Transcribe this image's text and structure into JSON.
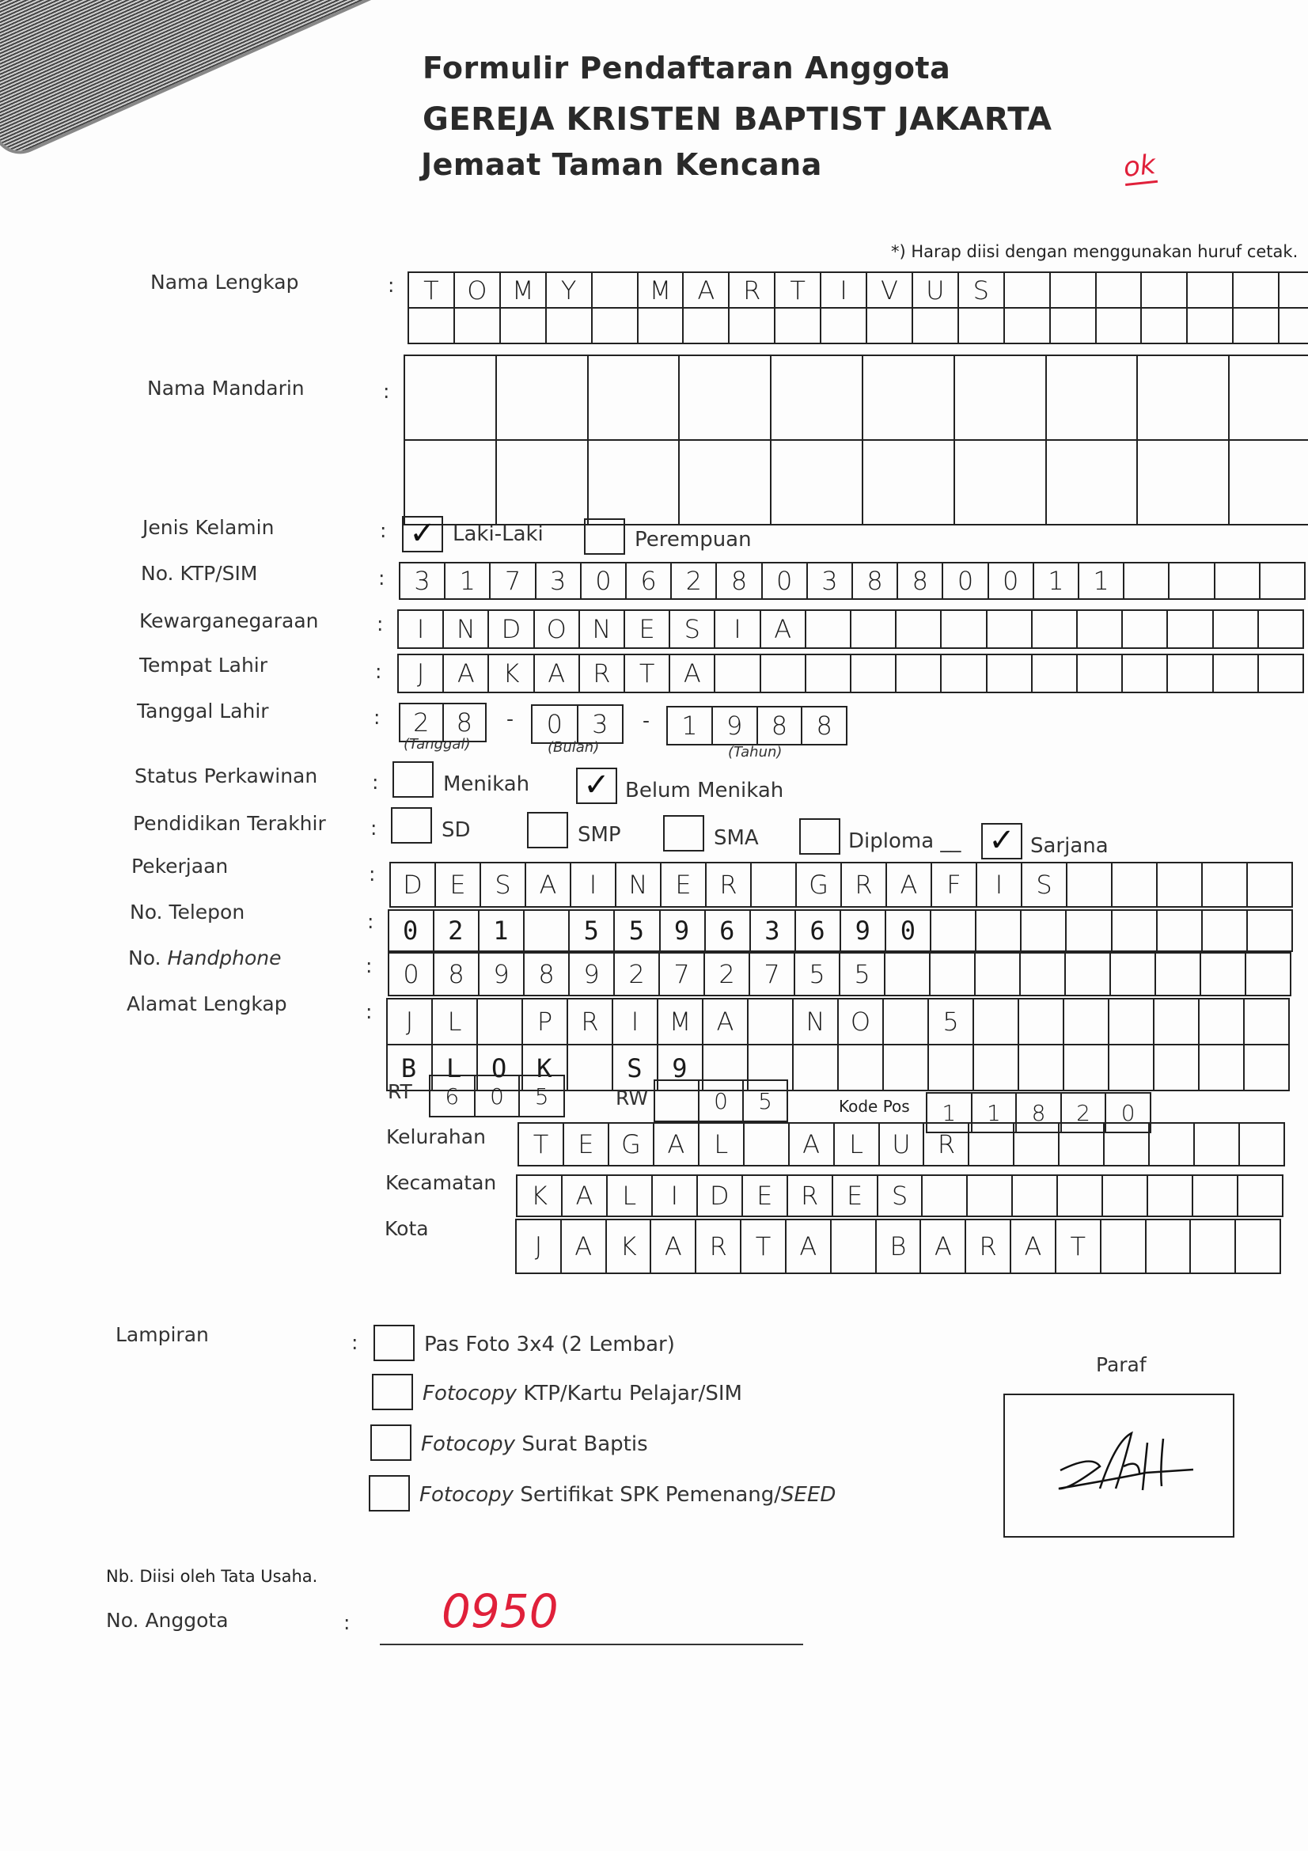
{
  "header": {
    "title": "Formulir Pendaftaran Anggota",
    "org": "GEREJA KRISTEN BAPTIST JAKARTA",
    "congregation": "Jemaat Taman Kencana",
    "ok_mark": "ok",
    "note": "*) Harap diisi dengan menggunakan huruf cetak."
  },
  "fields": {
    "nama_lengkap": {
      "label": "Nama Lengkap",
      "row1": "TOMY MARTIVUS",
      "row2": ""
    },
    "nama_mandarin": {
      "label": "Nama Mandarin",
      "row1": "",
      "row2": ""
    },
    "jenis_kelamin": {
      "label": "Jenis Kelamin",
      "options": [
        {
          "label": "Laki-Laki",
          "checked": true
        },
        {
          "label": "Perempuan",
          "checked": false
        }
      ]
    },
    "ktp": {
      "label": "No. KTP/SIM",
      "value": "3173062803880011"
    },
    "kewarganegaraan": {
      "label": "Kewarganegaraan",
      "value": "INDONESIA"
    },
    "tempat_lahir": {
      "label": "Tempat Lahir",
      "value": "JAKARTA"
    },
    "tanggal_lahir": {
      "label": "Tanggal Lahir",
      "day": "28",
      "month": "03",
      "year": "1988",
      "day_caption": "(Tanggal)",
      "month_caption": "(Bulan)",
      "year_caption": "(Tahun)",
      "sep": "-"
    },
    "status": {
      "label": "Status Perkawinan",
      "options": [
        {
          "label": "Menikah",
          "checked": false
        },
        {
          "label": "Belum Menikah",
          "checked": true
        }
      ]
    },
    "pendidikan": {
      "label": "Pendidikan Terakhir",
      "options": [
        {
          "label": "SD",
          "checked": false
        },
        {
          "label": "SMP",
          "checked": false
        },
        {
          "label": "SMA",
          "checked": false
        },
        {
          "label": "Diploma __",
          "checked": false
        },
        {
          "label": "Sarjana",
          "checked": true
        }
      ]
    },
    "pekerjaan": {
      "label": "Pekerjaan",
      "value": "DESAINER GRAFIS"
    },
    "telepon": {
      "label": "No. Telepon",
      "value": "021 55963690"
    },
    "handphone": {
      "label_prefix": "No. ",
      "label_italic": "Handphone",
      "value": "08989272755"
    },
    "alamat": {
      "label": "Alamat Lengkap",
      "row1": "JL PRIMA NO 5",
      "row2": "BLOK S9"
    },
    "rt": {
      "label": "RT",
      "value": "605"
    },
    "rw": {
      "label": "RW",
      "value": " 05"
    },
    "kode_pos": {
      "label": "Kode Pos",
      "value": "11820"
    },
    "kelurahan": {
      "label": "Kelurahan",
      "value": "TEGAL ALUR"
    },
    "kecamatan": {
      "label": "Kecamatan",
      "value": "KALIDERES"
    },
    "kota": {
      "label": "Kota",
      "value": "JAKARTA BARAT"
    }
  },
  "lampiran": {
    "label": "Lampiran",
    "items": [
      {
        "italic": "",
        "text": "Pas Foto 3x4 (2 Lembar)",
        "checked": false
      },
      {
        "italic": "Fotocopy",
        "text": " KTP/Kartu Pelajar/SIM",
        "checked": false
      },
      {
        "italic": "Fotocopy",
        "text": " Surat Baptis",
        "checked": false
      },
      {
        "italic": "Fotocopy",
        "text": " Sertifikat SPK Pemenang/",
        "text_italic_end": "SEED",
        "checked": false
      }
    ]
  },
  "paraf": {
    "label": "Paraf"
  },
  "footer": {
    "note": "Nb. Diisi oleh Tata Usaha.",
    "anggota_label": "No. Anggota",
    "anggota_value": "0950"
  },
  "colon": ":",
  "colors": {
    "ink": "#222222",
    "red_ink": "#e0203a"
  }
}
